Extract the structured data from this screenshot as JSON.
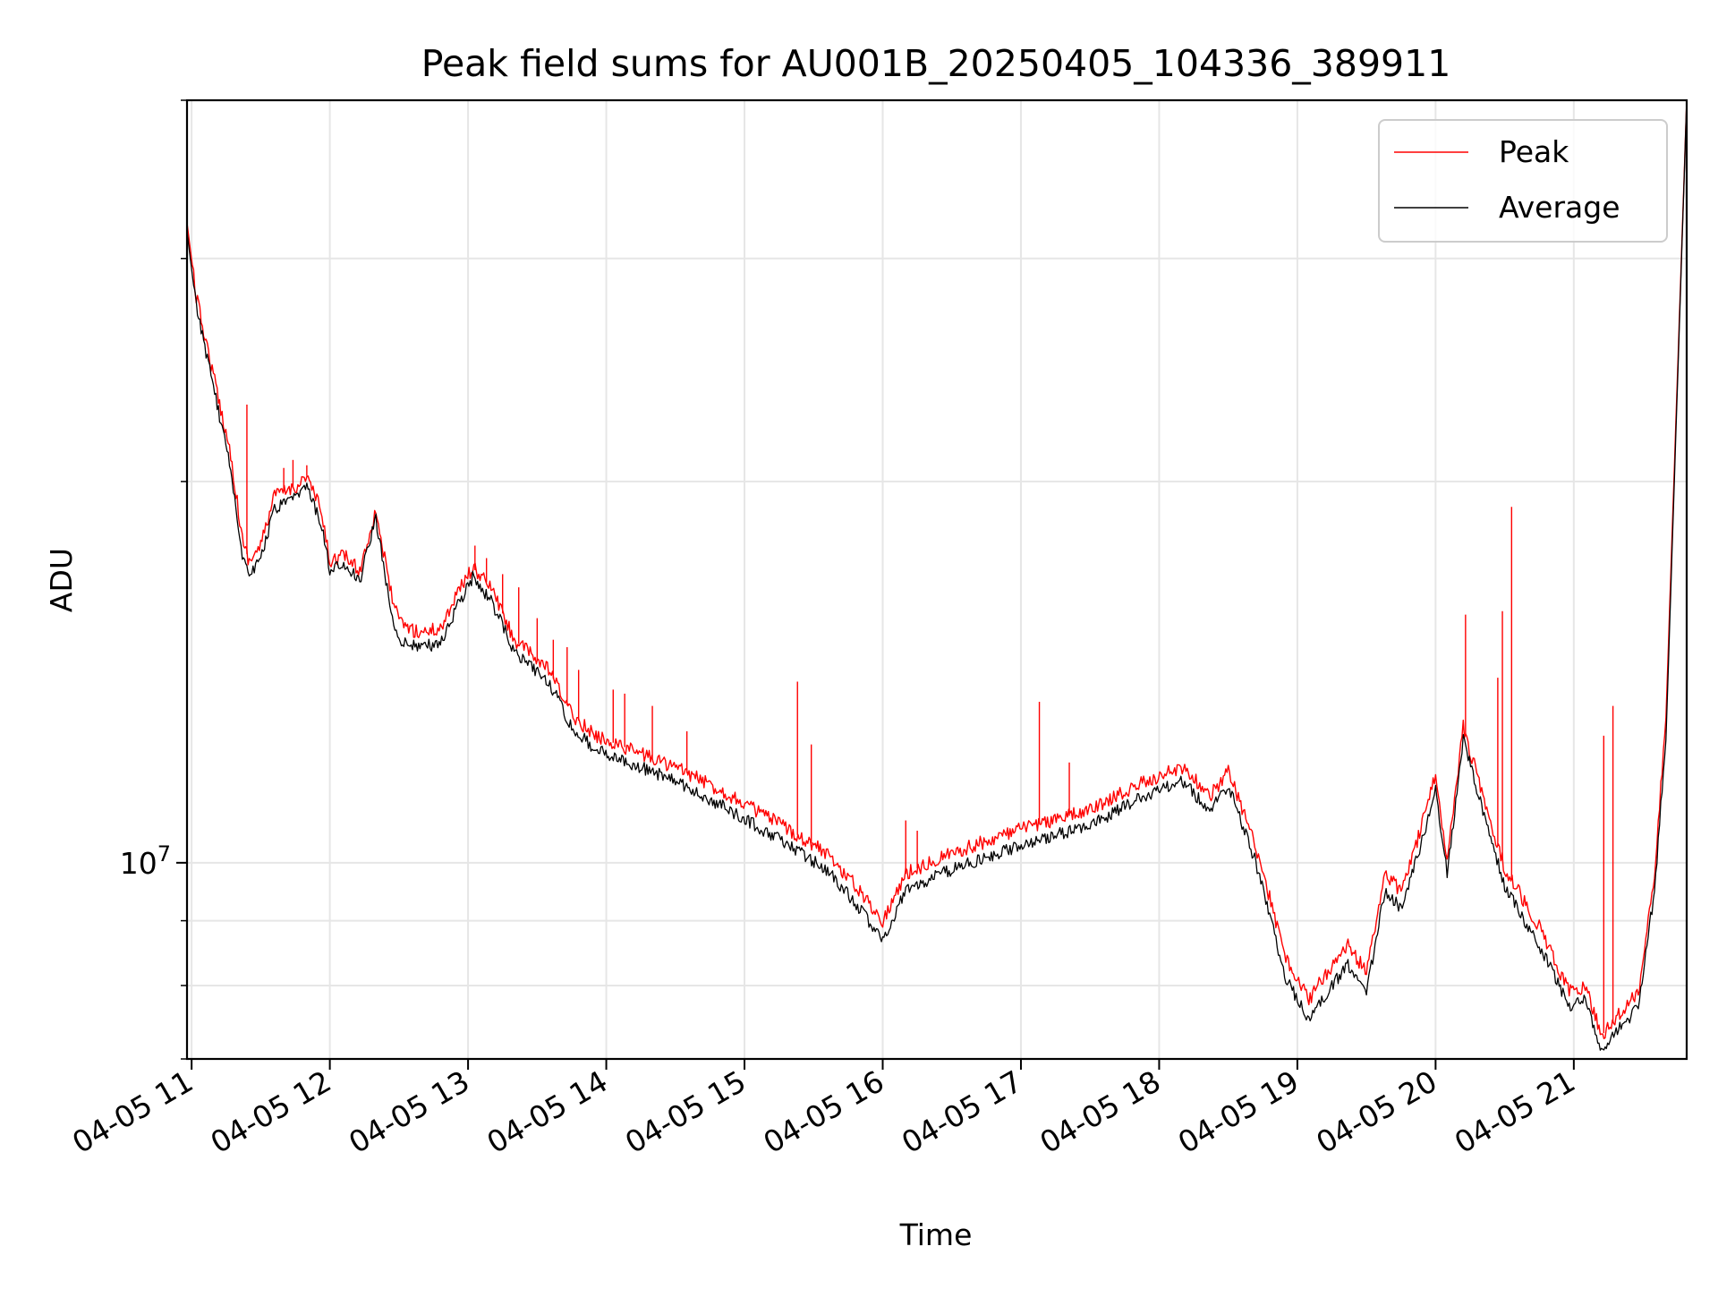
{
  "chart_data": {
    "type": "line",
    "title": "Peak field sums for AU001B_20250405_104336_389911",
    "xlabel": "Time",
    "ylabel": "ADU",
    "x_axis": {
      "type": "time",
      "range": [
        "2025-04-05 10:58",
        "2025-04-05 21:49"
      ],
      "tick_labels": [
        "04-05 11",
        "04-05 12",
        "04-05 13",
        "04-05 14",
        "04-05 15",
        "04-05 16",
        "04-05 17",
        "04-05 18",
        "04-05 19",
        "04-05 20",
        "04-05 21"
      ],
      "tick_rotation": 30
    },
    "y_axis": {
      "scale": "log",
      "range": [
        7000000,
        40000000
      ],
      "tick_labels": [
        {
          "value": 10000000,
          "label_base": "10",
          "label_exp": "7"
        }
      ],
      "minor_ticks": [
        7000000,
        8000000,
        9000000,
        20000000,
        30000000,
        40000000
      ]
    },
    "grid": true,
    "legend": {
      "position": "top-right"
    },
    "colors": {
      "peak": "#ff0000",
      "average": "#000000"
    },
    "series": [
      {
        "name": "Peak",
        "color": "#ff0000",
        "points": [
          [
            "2025-04-05 10:58",
            32000000
          ],
          [
            "2025-04-05 11:02",
            28000000
          ],
          [
            "2025-04-05 11:10",
            24000000
          ],
          [
            "2025-04-05 11:17",
            21000000
          ],
          [
            "2025-04-05 11:22",
            18000000
          ],
          [
            "2025-04-05 11:25",
            17300000
          ],
          [
            "2025-04-05 11:30",
            17800000
          ],
          [
            "2025-04-05 11:36",
            19500000
          ],
          [
            "2025-04-05 11:45",
            19800000
          ],
          [
            "2025-04-05 11:50",
            20200000
          ],
          [
            "2025-04-05 11:56",
            19000000
          ],
          [
            "2025-04-05 12:00",
            17300000
          ],
          [
            "2025-04-05 12:06",
            17500000
          ],
          [
            "2025-04-05 12:13",
            17000000
          ],
          [
            "2025-04-05 12:20",
            19000000
          ],
          [
            "2025-04-05 12:26",
            16500000
          ],
          [
            "2025-04-05 12:30",
            15500000
          ],
          [
            "2025-04-05 12:38",
            15200000
          ],
          [
            "2025-04-05 12:48",
            15300000
          ],
          [
            "2025-04-05 12:55",
            16300000
          ],
          [
            "2025-04-05 13:02",
            17100000
          ],
          [
            "2025-04-05 13:10",
            16500000
          ],
          [
            "2025-04-05 13:20",
            15000000
          ],
          [
            "2025-04-05 13:35",
            14200000
          ],
          [
            "2025-04-05 13:45",
            13100000
          ],
          [
            "2025-04-05 13:55",
            12600000
          ],
          [
            "2025-04-05 14:10",
            12300000
          ],
          [
            "2025-04-05 14:30",
            11900000
          ],
          [
            "2025-04-05 14:50",
            11400000
          ],
          [
            "2025-04-05 15:05",
            11000000
          ],
          [
            "2025-04-05 15:20",
            10600000
          ],
          [
            "2025-04-05 15:35",
            10200000
          ],
          [
            "2025-04-05 15:48",
            9600000
          ],
          [
            "2025-04-05 16:00",
            9000000
          ],
          [
            "2025-04-05 16:10",
            9800000
          ],
          [
            "2025-04-05 16:25",
            10100000
          ],
          [
            "2025-04-05 16:45",
            10400000
          ],
          [
            "2025-04-05 17:05",
            10700000
          ],
          [
            "2025-04-05 17:30",
            11000000
          ],
          [
            "2025-04-05 17:50",
            11500000
          ],
          [
            "2025-04-05 18:10",
            11900000
          ],
          [
            "2025-04-05 18:22",
            11300000
          ],
          [
            "2025-04-05 18:30",
            11800000
          ],
          [
            "2025-04-05 18:42",
            10300000
          ],
          [
            "2025-04-05 18:55",
            8400000
          ],
          [
            "2025-04-05 19:05",
            7800000
          ],
          [
            "2025-04-05 19:15",
            8300000
          ],
          [
            "2025-04-05 19:22",
            8600000
          ],
          [
            "2025-04-05 19:30",
            8200000
          ],
          [
            "2025-04-05 19:38",
            9800000
          ],
          [
            "2025-04-05 19:45",
            9500000
          ],
          [
            "2025-04-05 19:52",
            10400000
          ],
          [
            "2025-04-05 20:00",
            11700000
          ],
          [
            "2025-04-05 20:05",
            10100000
          ],
          [
            "2025-04-05 20:12",
            12800000
          ],
          [
            "2025-04-05 20:20",
            11400000
          ],
          [
            "2025-04-05 20:30",
            9900000
          ],
          [
            "2025-04-05 20:45",
            8900000
          ],
          [
            "2025-04-05 20:58",
            7900000
          ],
          [
            "2025-04-05 21:05",
            8000000
          ],
          [
            "2025-04-05 21:12",
            7300000
          ],
          [
            "2025-04-05 21:20",
            7600000
          ],
          [
            "2025-04-05 21:28",
            7900000
          ],
          [
            "2025-04-05 21:35",
            9800000
          ],
          [
            "2025-04-05 21:40",
            13000000
          ],
          [
            "2025-04-05 21:49",
            40000000
          ]
        ]
      },
      {
        "name": "Average",
        "color": "#000000",
        "points": [
          [
            "2025-04-05 10:58",
            31500000
          ],
          [
            "2025-04-05 11:02",
            27500000
          ],
          [
            "2025-04-05 11:10",
            23500000
          ],
          [
            "2025-04-05 11:17",
            20500000
          ],
          [
            "2025-04-05 11:22",
            17500000
          ],
          [
            "2025-04-05 11:25",
            16900000
          ],
          [
            "2025-04-05 11:30",
            17400000
          ],
          [
            "2025-04-05 11:36",
            19000000
          ],
          [
            "2025-04-05 11:45",
            19400000
          ],
          [
            "2025-04-05 11:50",
            19800000
          ],
          [
            "2025-04-05 11:56",
            18600000
          ],
          [
            "2025-04-05 12:00",
            17000000
          ],
          [
            "2025-04-05 12:06",
            17200000
          ],
          [
            "2025-04-05 12:13",
            16700000
          ],
          [
            "2025-04-05 12:20",
            18700000
          ],
          [
            "2025-04-05 12:26",
            16000000
          ],
          [
            "2025-04-05 12:30",
            15000000
          ],
          [
            "2025-04-05 12:38",
            14800000
          ],
          [
            "2025-04-05 12:48",
            14900000
          ],
          [
            "2025-04-05 12:55",
            15900000
          ],
          [
            "2025-04-05 13:02",
            16800000
          ],
          [
            "2025-04-05 13:10",
            16100000
          ],
          [
            "2025-04-05 13:20",
            14700000
          ],
          [
            "2025-04-05 13:35",
            13900000
          ],
          [
            "2025-04-05 13:45",
            12800000
          ],
          [
            "2025-04-05 13:55",
            12300000
          ],
          [
            "2025-04-05 14:10",
            12000000
          ],
          [
            "2025-04-05 14:30",
            11600000
          ],
          [
            "2025-04-05 14:50",
            11100000
          ],
          [
            "2025-04-05 15:05",
            10700000
          ],
          [
            "2025-04-05 15:20",
            10300000
          ],
          [
            "2025-04-05 15:35",
            9900000
          ],
          [
            "2025-04-05 15:48",
            9300000
          ],
          [
            "2025-04-05 16:00",
            8700000
          ],
          [
            "2025-04-05 16:10",
            9500000
          ],
          [
            "2025-04-05 16:25",
            9800000
          ],
          [
            "2025-04-05 16:45",
            10100000
          ],
          [
            "2025-04-05 17:05",
            10400000
          ],
          [
            "2025-04-05 17:30",
            10700000
          ],
          [
            "2025-04-05 17:50",
            11200000
          ],
          [
            "2025-04-05 18:10",
            11600000
          ],
          [
            "2025-04-05 18:22",
            11000000
          ],
          [
            "2025-04-05 18:30",
            11500000
          ],
          [
            "2025-04-05 18:42",
            10000000
          ],
          [
            "2025-04-05 18:55",
            8100000
          ],
          [
            "2025-04-05 19:05",
            7500000
          ],
          [
            "2025-04-05 19:15",
            8000000
          ],
          [
            "2025-04-05 19:22",
            8300000
          ],
          [
            "2025-04-05 19:30",
            7900000
          ],
          [
            "2025-04-05 19:38",
            9500000
          ],
          [
            "2025-04-05 19:45",
            9200000
          ],
          [
            "2025-04-05 19:52",
            10100000
          ],
          [
            "2025-04-05 20:00",
            11400000
          ],
          [
            "2025-04-05 20:05",
            9800000
          ],
          [
            "2025-04-05 20:12",
            12500000
          ],
          [
            "2025-04-05 20:20",
            11100000
          ],
          [
            "2025-04-05 20:30",
            9600000
          ],
          [
            "2025-04-05 20:45",
            8600000
          ],
          [
            "2025-04-05 20:58",
            7700000
          ],
          [
            "2025-04-05 21:05",
            7800000
          ],
          [
            "2025-04-05 21:12",
            7100000
          ],
          [
            "2025-04-05 21:20",
            7400000
          ],
          [
            "2025-04-05 21:28",
            7700000
          ],
          [
            "2025-04-05 21:35",
            9500000
          ],
          [
            "2025-04-05 21:40",
            12500000
          ],
          [
            "2025-04-05 21:49",
            40000000
          ]
        ]
      }
    ],
    "annotations": {
      "peak_spikes": [
        [
          "2025-04-05 11:24",
          23000000
        ],
        [
          "2025-04-05 11:40",
          20500000
        ],
        [
          "2025-04-05 11:44",
          20800000
        ],
        [
          "2025-04-05 11:50",
          20600000
        ],
        [
          "2025-04-05 13:03",
          17800000
        ],
        [
          "2025-04-05 13:08",
          17400000
        ],
        [
          "2025-04-05 13:15",
          16900000
        ],
        [
          "2025-04-05 13:22",
          16500000
        ],
        [
          "2025-04-05 13:30",
          15600000
        ],
        [
          "2025-04-05 13:37",
          15000000
        ],
        [
          "2025-04-05 13:43",
          14800000
        ],
        [
          "2025-04-05 13:48",
          14200000
        ],
        [
          "2025-04-05 14:03",
          13700000
        ],
        [
          "2025-04-05 14:08",
          13600000
        ],
        [
          "2025-04-05 14:20",
          13300000
        ],
        [
          "2025-04-05 14:35",
          12700000
        ],
        [
          "2025-04-05 15:23",
          13900000
        ],
        [
          "2025-04-05 15:29",
          12400000
        ],
        [
          "2025-04-05 16:10",
          10800000
        ],
        [
          "2025-04-05 16:15",
          10600000
        ],
        [
          "2025-04-05 17:08",
          13400000
        ],
        [
          "2025-04-05 17:21",
          12000000
        ],
        [
          "2025-04-05 20:13",
          15700000
        ],
        [
          "2025-04-05 20:27",
          14000000
        ],
        [
          "2025-04-05 20:29",
          15800000
        ],
        [
          "2025-04-05 20:33",
          19100000
        ],
        [
          "2025-04-05 21:13",
          12600000
        ],
        [
          "2025-04-05 21:17",
          13300000
        ]
      ]
    }
  }
}
